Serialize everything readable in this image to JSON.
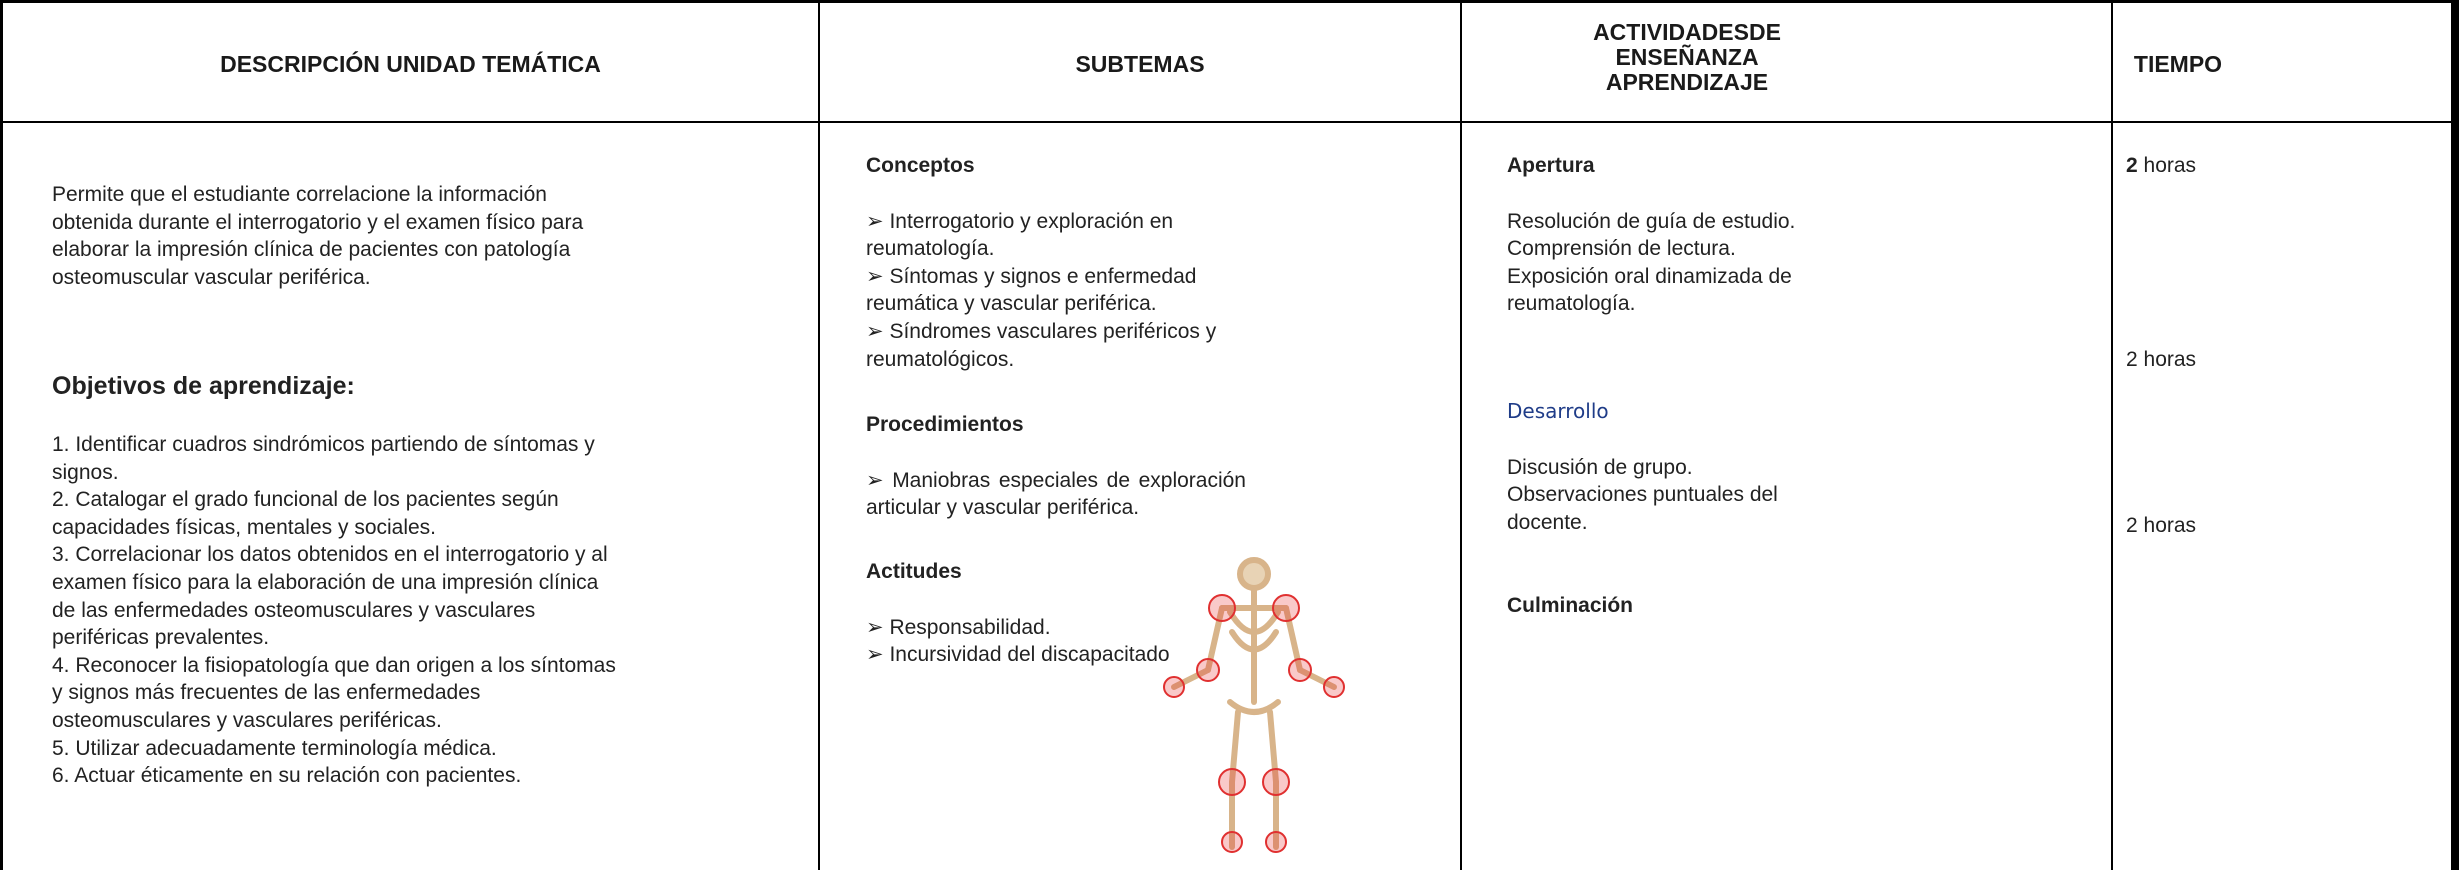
{
  "table": {
    "headers": [
      "DESCRIPCIÓN UNIDAD TEMÁTICA",
      "SUBTEMAS",
      "ACTIVIDADESDE ENSEÑANZA APRENDIZAJE",
      "TIEMPO"
    ],
    "description": {
      "intro": "Permite que el estudiante correlacione la información obtenida durante el interrogatorio y el examen físico para elaborar la impresión clínica de pacientes con patología osteomuscular vascular periférica.",
      "objectives_title": "Objetivos de aprendizaje:",
      "objectives": [
        "1.   Identificar cuadros sindrómicos partiendo de síntomas y signos.",
        "2.   Catalogar el grado funcional de los pacientes según capacidades físicas, mentales y sociales.",
        "3.   Correlacionar los datos obtenidos en el interrogatorio y al examen físico para la elaboración de una impresión clínica  de las enfermedades osteomusculares y vasculares periféricas prevalentes.",
        "4.   Reconocer la fisiopatología que dan origen a los síntomas y signos más frecuentes de las enfermedades osteomusculares y vasculares periféricas.",
        "5.   Utilizar adecuadamente terminología médica.",
        "6.   Actuar éticamente en su relación con pacientes."
      ]
    },
    "subtopics": [
      {
        "title": "Conceptos",
        "items": [
          "Interrogatorio y exploración en reumatología.",
          "Síntomas y signos e enfermedad reumática y vascular periférica.",
          "Síndromes vasculares periféricos y reumatológicos."
        ]
      },
      {
        "title": "Procedimientos",
        "items": [
          "Maniobras especiales de exploración articular y vascular periférica."
        ]
      },
      {
        "title": "Actitudes",
        "items": [
          "Responsabilidad.",
          "Incursividad del discapacitado"
        ]
      }
    ],
    "activities": [
      {
        "title": "Apertura",
        "items": [
          "Resolución de guía de estudio.",
          "Comprensión de lectura.",
          "Exposición oral dinamizada de reumatología."
        ]
      },
      {
        "title": "Desarrollo",
        "items": [
          "Discusión de grupo.",
          "Observaciones puntuales del docente."
        ]
      },
      {
        "title": "Culminación",
        "items": []
      }
    ],
    "time": [
      {
        "amount": "2",
        "unit": "horas"
      },
      {
        "amount": "2",
        "unit": "horas"
      },
      {
        "amount": "2",
        "unit": "horas"
      }
    ]
  }
}
